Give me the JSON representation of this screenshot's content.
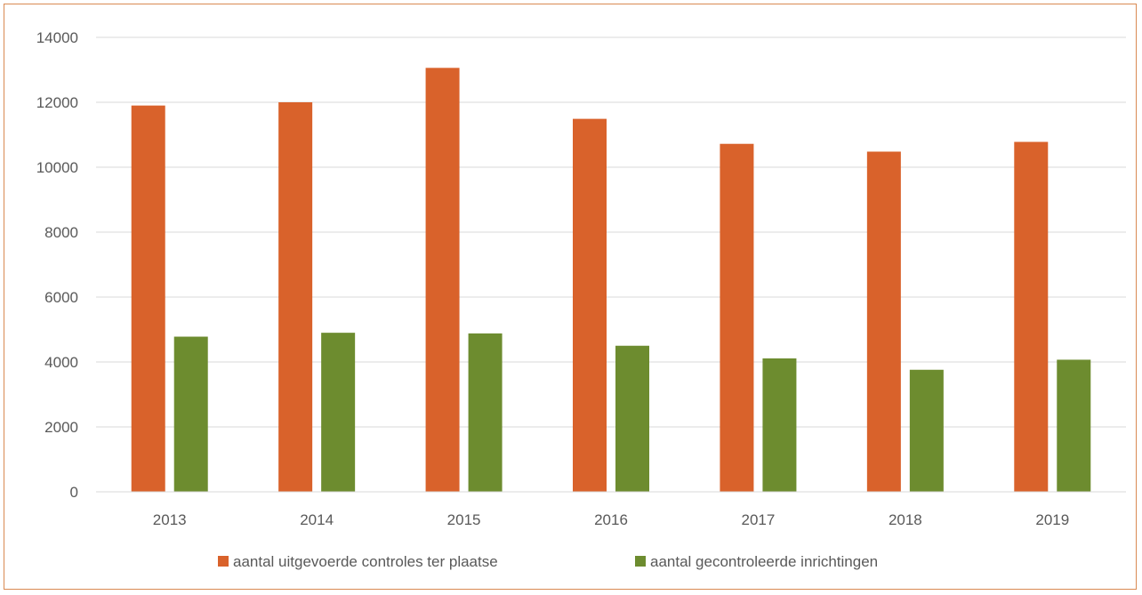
{
  "chart_data": {
    "type": "bar",
    "categories": [
      "2013",
      "2014",
      "2015",
      "2016",
      "2017",
      "2018",
      "2019"
    ],
    "series": [
      {
        "name": "aantal uitgevoerde controles ter plaatse",
        "color": "#d9622b",
        "values": [
          11900,
          12000,
          13060,
          11490,
          10720,
          10480,
          10780
        ]
      },
      {
        "name": "aantal gecontroleerde inrichtingen",
        "color": "#6d8c2f",
        "values": [
          4780,
          4900,
          4880,
          4500,
          4110,
          3760,
          4070
        ]
      }
    ],
    "ylim": [
      0,
      14000
    ],
    "yticks": [
      "0",
      "2000",
      "4000",
      "6000",
      "8000",
      "10000",
      "12000",
      "14000"
    ],
    "grid": true,
    "legend_position": "bottom",
    "title": "",
    "xlabel": "",
    "ylabel": ""
  }
}
